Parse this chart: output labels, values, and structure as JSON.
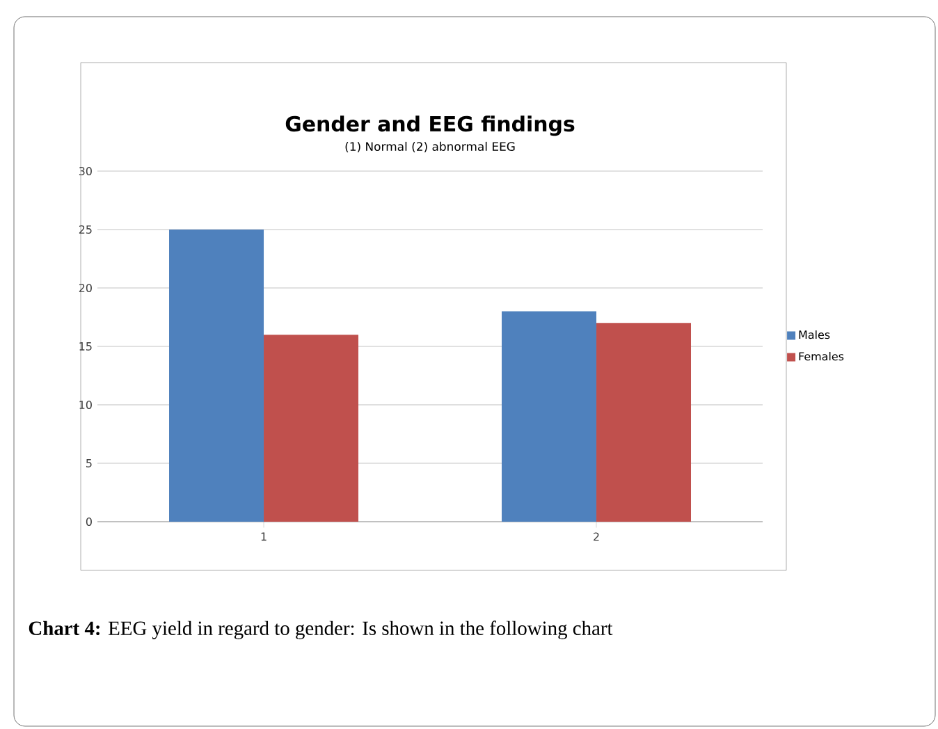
{
  "chart_data": {
    "type": "bar",
    "title": "Gender and EEG findings",
    "subtitle": "(1) Normal (2) abnormal EEG",
    "categories": [
      "1",
      "2"
    ],
    "series": [
      {
        "name": "Males",
        "color": "#4f81bd",
        "values": [
          25,
          18
        ]
      },
      {
        "name": "Females",
        "color": "#c0504d",
        "values": [
          16,
          17
        ]
      }
    ],
    "ylim": [
      0,
      30
    ],
    "yticks": [
      0,
      5,
      10,
      15,
      20,
      25,
      30
    ],
    "grid": "y",
    "legend": "right",
    "annotations": [
      "**Chart 4:** EEG yield in regard to gender: Is shown in the following chart"
    ]
  }
}
